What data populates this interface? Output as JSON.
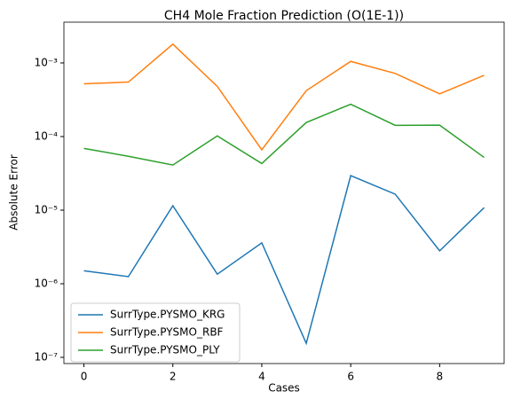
{
  "chart_data": {
    "type": "line",
    "title": "CH4 Mole Fraction Prediction (O(1E-1))",
    "x_label": "Cases",
    "y_label": "Absolute Error",
    "x": [
      0,
      1,
      2,
      3,
      4,
      5,
      6,
      7,
      8,
      9
    ],
    "series": [
      {
        "name": "SurrType.PYSMO_KRG",
        "color": "#1f77b4",
        "values": [
          1.5e-06,
          1.25e-06,
          1.15e-05,
          1.35e-06,
          3.6e-06,
          1.55e-07,
          2.95e-05,
          1.65e-05,
          2.8e-06,
          1.08e-05
        ]
      },
      {
        "name": "SurrType.PYSMO_RBF",
        "color": "#ff7f0e",
        "values": [
          0.00052,
          0.00055,
          0.0018,
          0.00048,
          6.6e-05,
          0.00042,
          0.00105,
          0.00072,
          0.00038,
          0.00068
        ]
      },
      {
        "name": "SurrType.PYSMO_PLY",
        "color": "#2ca02c",
        "values": [
          6.9e-05,
          5.4e-05,
          4.1e-05,
          0.000102,
          4.3e-05,
          0.000155,
          0.000275,
          0.000142,
          0.000143,
          5.2e-05
        ]
      }
    ],
    "xlim": [
      -0.45,
      9.45
    ],
    "xticks": [
      0,
      2,
      4,
      6,
      8
    ],
    "ylim": [
      8.24e-08,
      0.00358
    ],
    "y_scale": "log",
    "yticks": [
      {
        "value": 1e-07,
        "label": "10⁻⁷"
      },
      {
        "value": 1e-06,
        "label": "10⁻⁶"
      },
      {
        "value": 1e-05,
        "label": "10⁻⁵"
      },
      {
        "value": 0.0001,
        "label": "10⁻⁴"
      },
      {
        "value": 0.001,
        "label": "10⁻³"
      }
    ],
    "legend": "lower left"
  }
}
